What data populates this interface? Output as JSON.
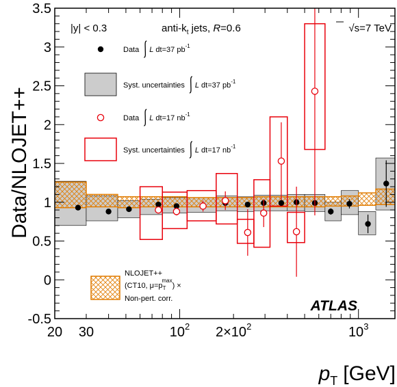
{
  "chart_data": {
    "type": "scatter",
    "x_scale": "log",
    "y_scale": "linear",
    "xlim": [
      20,
      1600
    ],
    "ylim": [
      -0.5,
      3.5
    ],
    "ylabel": "Data/NLOJET++",
    "xlabel_main": "p",
    "xlabel_sub": "T",
    "xlabel_unit": "[GeV]",
    "y_ticks": [
      "-0.5",
      "0",
      "0.5",
      "1",
      "1.5",
      "2",
      "2.5",
      "3",
      "3.5"
    ],
    "x_tick_labels": [
      {
        "x": 20,
        "text": "20"
      },
      {
        "x": 30,
        "text": "30"
      },
      {
        "x": 100,
        "text": "10",
        "sup": "2"
      },
      {
        "x": 200,
        "text": "2×10",
        "sup": "2"
      },
      {
        "x": 1000,
        "text": "10",
        "sup": "3"
      }
    ],
    "annotations": {
      "rapidity": "|y| < 0.3",
      "algorithm": "anti-k",
      "algorithm_sub": "t",
      "algorithm_rest": " jets,  ",
      "radius_symbol": "R",
      "radius_value": "=0.6",
      "energy": "√s=7 TeV",
      "experiment": "ATLAS"
    },
    "legend": [
      {
        "marker": "black-dot",
        "label": "Data",
        "lumi": "L dt=37 pb",
        "lumi_sup": "-1"
      },
      {
        "marker": "grey-box",
        "label": "Syst. uncertainties",
        "lumi": "L dt=37 pb",
        "lumi_sup": "-1"
      },
      {
        "marker": "red-circle",
        "label": "Data",
        "lumi": "L dt=17 nb",
        "lumi_sup": "-1"
      },
      {
        "marker": "red-box",
        "label": "Syst. uncertainties",
        "lumi": "L dt=17 nb",
        "lumi_sup": "-1"
      }
    ],
    "theory_legend": {
      "line1": "NLOJET++",
      "line2_pre": "(CT10, μ=p",
      "line2_sub": "T",
      "line2_sup": "max",
      "line2_post": ") ×",
      "line3": "Non-pert. corr."
    },
    "series": [
      {
        "name": "Data 37 pb-1",
        "color": "#000000",
        "points": [
          {
            "x": 27,
            "y": 0.93,
            "err": 0.015
          },
          {
            "x": 40,
            "y": 0.88,
            "err": 0.015
          },
          {
            "x": 52,
            "y": 0.91,
            "err": 0.015
          },
          {
            "x": 76,
            "y": 0.97,
            "err": 0.015
          },
          {
            "x": 96,
            "y": 0.95,
            "err": 0.015
          },
          {
            "x": 135,
            "y": 0.96,
            "err": 0.02
          },
          {
            "x": 180,
            "y": 0.99,
            "err": 0.02
          },
          {
            "x": 240,
            "y": 0.97,
            "err": 0.02
          },
          {
            "x": 295,
            "y": 0.99,
            "err": 0.02
          },
          {
            "x": 370,
            "y": 0.99,
            "err": 0.02
          },
          {
            "x": 450,
            "y": 1.0,
            "err": 0.02
          },
          {
            "x": 570,
            "y": 0.99,
            "err": 0.03
          },
          {
            "x": 700,
            "y": 0.88,
            "err": 0.04
          },
          {
            "x": 890,
            "y": 0.98,
            "err": 0.06
          },
          {
            "x": 1130,
            "y": 0.72,
            "err": 0.12
          },
          {
            "x": 1430,
            "y": 1.24,
            "err": 0.3
          }
        ]
      },
      {
        "name": "Data 17 nb-1",
        "color": "#e8000b",
        "points": [
          {
            "x": 76,
            "y": 0.9,
            "err": 0.04
          },
          {
            "x": 96,
            "y": 0.88,
            "err": 0.05
          },
          {
            "x": 135,
            "y": 0.95,
            "err": 0.07
          },
          {
            "x": 180,
            "y": 1.02,
            "err": 0.12
          },
          {
            "x": 240,
            "y": 0.61,
            "err": 0.3
          },
          {
            "x": 295,
            "y": 0.86,
            "err": 0.18
          },
          {
            "x": 370,
            "y": 1.53,
            "err": 0.5
          },
          {
            "x": 450,
            "y": 0.62,
            "err": 0.58
          },
          {
            "x": 570,
            "y": 2.43,
            "err": 1.6
          }
        ]
      }
    ],
    "syst_37pb": {
      "fill": "#cccccc",
      "bins": [
        {
          "lo": 20,
          "hi": 30,
          "ylo": 0.7,
          "yhi": 1.27
        },
        {
          "lo": 30,
          "hi": 45,
          "ylo": 0.76,
          "yhi": 1.08
        },
        {
          "lo": 45,
          "hi": 60,
          "ylo": 0.8,
          "yhi": 1.02
        },
        {
          "lo": 60,
          "hi": 80,
          "ylo": 0.84,
          "yhi": 1.04
        },
        {
          "lo": 80,
          "hi": 110,
          "ylo": 0.86,
          "yhi": 1.06
        },
        {
          "lo": 110,
          "hi": 160,
          "ylo": 0.87,
          "yhi": 1.06
        },
        {
          "lo": 160,
          "hi": 210,
          "ylo": 0.89,
          "yhi": 1.08
        },
        {
          "lo": 210,
          "hi": 260,
          "ylo": 0.88,
          "yhi": 1.07
        },
        {
          "lo": 260,
          "hi": 320,
          "ylo": 0.89,
          "yhi": 1.09
        },
        {
          "lo": 320,
          "hi": 400,
          "ylo": 0.89,
          "yhi": 1.09
        },
        {
          "lo": 400,
          "hi": 500,
          "ylo": 0.89,
          "yhi": 1.1
        },
        {
          "lo": 500,
          "hi": 650,
          "ylo": 0.88,
          "yhi": 1.1
        },
        {
          "lo": 650,
          "hi": 800,
          "ylo": 0.76,
          "yhi": 1.0
        },
        {
          "lo": 800,
          "hi": 1000,
          "ylo": 0.84,
          "yhi": 1.15
        },
        {
          "lo": 1000,
          "hi": 1250,
          "ylo": 0.58,
          "yhi": 0.88
        },
        {
          "lo": 1250,
          "hi": 1600,
          "ylo": 0.9,
          "yhi": 1.57
        }
      ]
    },
    "syst_17nb": {
      "color": "#e8000b",
      "bins": [
        {
          "lo": 60,
          "hi": 80,
          "ylo": 0.52,
          "yhi": 1.2
        },
        {
          "lo": 80,
          "hi": 110,
          "ylo": 0.66,
          "yhi": 1.13
        },
        {
          "lo": 110,
          "hi": 160,
          "ylo": 0.76,
          "yhi": 1.15
        },
        {
          "lo": 160,
          "hi": 210,
          "ylo": 0.72,
          "yhi": 1.37
        },
        {
          "lo": 210,
          "hi": 260,
          "ylo": 0.47,
          "yhi": 0.78
        },
        {
          "lo": 260,
          "hi": 320,
          "ylo": 0.42,
          "yhi": 1.29
        },
        {
          "lo": 320,
          "hi": 400,
          "ylo": 0.95,
          "yhi": 2.1
        },
        {
          "lo": 400,
          "hi": 500,
          "ylo": 0.48,
          "yhi": 0.87
        },
        {
          "lo": 500,
          "hi": 650,
          "ylo": 1.68,
          "yhi": 3.3
        }
      ]
    },
    "theory_band": {
      "color": "#e07b00",
      "bins": [
        {
          "lo": 20,
          "hi": 30,
          "ylo": 0.93,
          "yhi": 1.26
        },
        {
          "lo": 30,
          "hi": 45,
          "ylo": 0.94,
          "yhi": 1.1
        },
        {
          "lo": 45,
          "hi": 60,
          "ylo": 0.93,
          "yhi": 1.07
        },
        {
          "lo": 60,
          "hi": 80,
          "ylo": 0.94,
          "yhi": 1.07
        },
        {
          "lo": 80,
          "hi": 110,
          "ylo": 0.94,
          "yhi": 1.07
        },
        {
          "lo": 110,
          "hi": 160,
          "ylo": 0.94,
          "yhi": 1.06
        },
        {
          "lo": 160,
          "hi": 210,
          "ylo": 0.94,
          "yhi": 1.06
        },
        {
          "lo": 210,
          "hi": 260,
          "ylo": 0.94,
          "yhi": 1.06
        },
        {
          "lo": 260,
          "hi": 320,
          "ylo": 0.94,
          "yhi": 1.07
        },
        {
          "lo": 320,
          "hi": 400,
          "ylo": 0.94,
          "yhi": 1.07
        },
        {
          "lo": 400,
          "hi": 500,
          "ylo": 0.94,
          "yhi": 1.07
        },
        {
          "lo": 500,
          "hi": 650,
          "ylo": 0.94,
          "yhi": 1.07
        },
        {
          "lo": 650,
          "hi": 800,
          "ylo": 0.95,
          "yhi": 1.07
        },
        {
          "lo": 800,
          "hi": 1000,
          "ylo": 0.95,
          "yhi": 1.08
        },
        {
          "lo": 1000,
          "hi": 1250,
          "ylo": 0.96,
          "yhi": 1.12
        },
        {
          "lo": 1250,
          "hi": 1600,
          "ylo": 0.97,
          "yhi": 1.17
        }
      ]
    },
    "colors": {
      "data_37": "#000000",
      "data_17": "#e8000b",
      "syst_fill": "#cccccc",
      "theory": "#e07b00"
    }
  }
}
